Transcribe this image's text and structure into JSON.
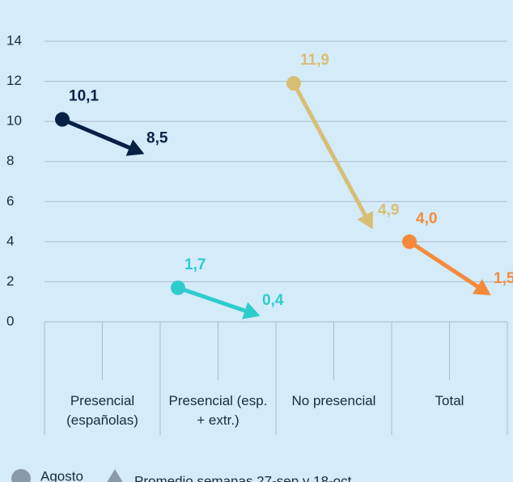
{
  "chart_data": {
    "type": "dumbbell-arrow",
    "categories": [
      "Presencial (españolas)",
      "Presencial (esp. + extr.)",
      "No presencial",
      "Total"
    ],
    "colors": [
      "#072146",
      "#2dcccd",
      "#d8be75",
      "#f7893b"
    ],
    "series": [
      {
        "name": "Agosto",
        "marker": "circle",
        "values": [
          10.1,
          1.7,
          11.9,
          4.0
        ],
        "value_labels": [
          "10,1",
          "1,7",
          "11,9",
          "4,0"
        ]
      },
      {
        "name": "Promedio semanas 27-sep y 18-oct",
        "marker": "triangle",
        "values": [
          8.5,
          0.4,
          4.9,
          1.5
        ],
        "value_labels": [
          "8,5",
          "0,4",
          "4,9",
          "1,5"
        ]
      }
    ],
    "ylim": [
      0,
      14
    ],
    "yticks": [
      0,
      2,
      4,
      6,
      8,
      10,
      12,
      14
    ],
    "grid": true
  }
}
